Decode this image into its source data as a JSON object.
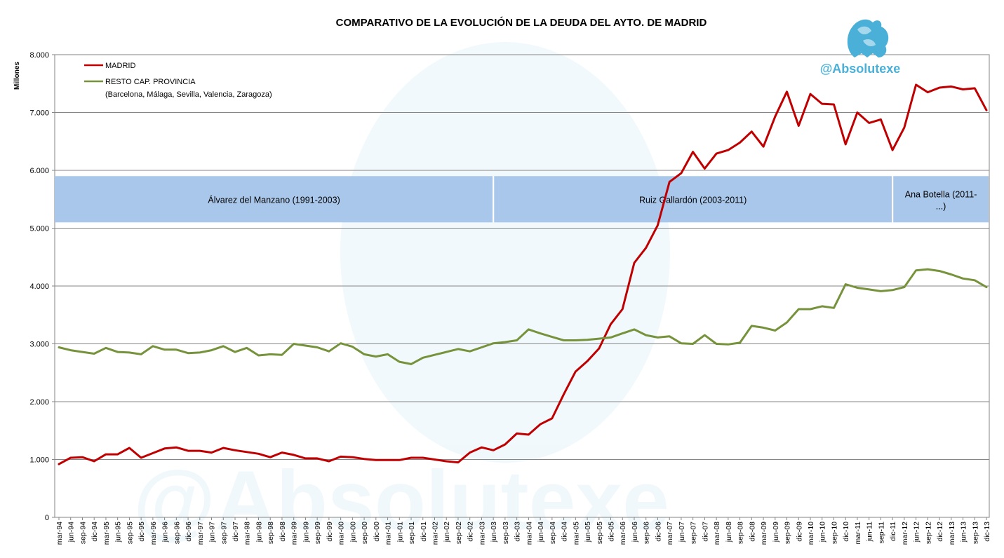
{
  "brand": {
    "handle": "@Absolutexe",
    "color": "#4ab0d8"
  },
  "colors": {
    "madrid": "#c00000",
    "resto": "#76933c",
    "band": "#a9c7ea",
    "grid": "#868686"
  },
  "chart_data": {
    "type": "line",
    "title": "COMPARATIVO DE LA EVOLUCIÓN DE LA DEUDA DEL AYTO. DE MADRID",
    "ylabel": "Millones",
    "ylim": [
      0,
      8000
    ],
    "yticks": [
      0,
      1000,
      2000,
      3000,
      4000,
      5000,
      6000,
      7000,
      8000
    ],
    "ytick_labels": [
      "0",
      "1.000",
      "2.000",
      "3.000",
      "4.000",
      "5.000",
      "6.000",
      "7.000",
      "8.000"
    ],
    "grid": true,
    "legend_position": "top-left",
    "categories": [
      "mar-94",
      "jun-94",
      "sep-94",
      "dic-94",
      "mar-95",
      "jun-95",
      "sep-95",
      "dic-95",
      "mar-96",
      "jun-96",
      "sep-96",
      "dic-96",
      "mar-97",
      "jun-97",
      "sep-97",
      "dic-97",
      "mar-98",
      "jun-98",
      "sep-98",
      "dic-98",
      "mar-99",
      "jun-99",
      "sep-99",
      "dic-99",
      "mar-00",
      "jun-00",
      "sep-00",
      "dic-00",
      "mar-01",
      "jun-01",
      "sep-01",
      "dic-01",
      "mar-02",
      "jun-02",
      "sep-02",
      "dic-02",
      "mar-03",
      "jun-03",
      "sep-03",
      "dic-03",
      "mar-04",
      "jun-04",
      "sep-04",
      "dic-04",
      "mar-05",
      "jun-05",
      "sep-05",
      "dic-05",
      "mar-06",
      "jun-06",
      "sep-06",
      "dic-06",
      "mar-07",
      "jun-07",
      "sep-07",
      "dic-07",
      "mar-08",
      "jun-08",
      "sep-08",
      "dic-08",
      "mar-09",
      "jun-09",
      "sep-09",
      "dic-09",
      "mar-10",
      "jun-10",
      "sep-10",
      "dic-10",
      "mar-11",
      "jun-11",
      "sep-11",
      "dic-11",
      "mar-12",
      "jun-12",
      "sep-12",
      "dic-12",
      "mar-13",
      "jun-13",
      "sep-13",
      "dic-13"
    ],
    "series": [
      {
        "name": "MADRID",
        "color": "#c00000",
        "values": [
          920,
          1030,
          1040,
          970,
          1090,
          1090,
          1200,
          1030,
          1110,
          1190,
          1210,
          1150,
          1150,
          1120,
          1200,
          1160,
          1130,
          1100,
          1040,
          1120,
          1080,
          1020,
          1020,
          970,
          1050,
          1040,
          1010,
          990,
          990,
          990,
          1030,
          1030,
          1000,
          970,
          950,
          1120,
          1210,
          1160,
          1260,
          1450,
          1430,
          1610,
          1710,
          2130,
          2520,
          2700,
          2920,
          3340,
          3600,
          4400,
          4660,
          5050,
          5800,
          5950,
          6320,
          6030,
          6290,
          6350,
          6480,
          6670,
          6410,
          6930,
          7360,
          6770,
          7320,
          7150,
          7140,
          6450,
          7000,
          6820,
          6880,
          6350,
          6740,
          7480,
          7350,
          7430,
          7450,
          7400,
          7420,
          7040
        ]
      },
      {
        "name": "RESTO CAP. PROVINCIA",
        "color": "#76933c",
        "values": [
          2940,
          2890,
          2860,
          2830,
          2930,
          2860,
          2850,
          2820,
          2960,
          2900,
          2900,
          2840,
          2850,
          2890,
          2960,
          2860,
          2930,
          2800,
          2820,
          2810,
          3000,
          2970,
          2940,
          2870,
          3010,
          2950,
          2820,
          2780,
          2820,
          2690,
          2650,
          2760,
          2810,
          2860,
          2910,
          2870,
          2940,
          3010,
          3030,
          3060,
          3250,
          3180,
          3120,
          3060,
          3060,
          3070,
          3090,
          3110,
          3180,
          3250,
          3150,
          3110,
          3130,
          3010,
          3000,
          3150,
          3000,
          2990,
          3020,
          3310,
          3280,
          3230,
          3370,
          3600,
          3600,
          3650,
          3620,
          4030,
          3970,
          3940,
          3910,
          3930,
          3980,
          4270,
          4290,
          4260,
          4200,
          4130,
          4100,
          3980
        ]
      }
    ],
    "legend_note": "(Barcelona, Málaga, Sevilla, Valencia, Zaragoza)",
    "periods": [
      {
        "label": "Álvarez del Manzano (1991-2003)",
        "from": "mar-94",
        "to": "jun-03"
      },
      {
        "label": "Ruiz   Gallardón (2003-2011)",
        "from": "jun-03",
        "to": "dic-11"
      },
      {
        "label_line1": "Ana Botella (2011-",
        "label_line2": "...)",
        "from": "dic-11",
        "to": "dic-13"
      }
    ],
    "periods_band_range": [
      5100,
      5900
    ]
  }
}
